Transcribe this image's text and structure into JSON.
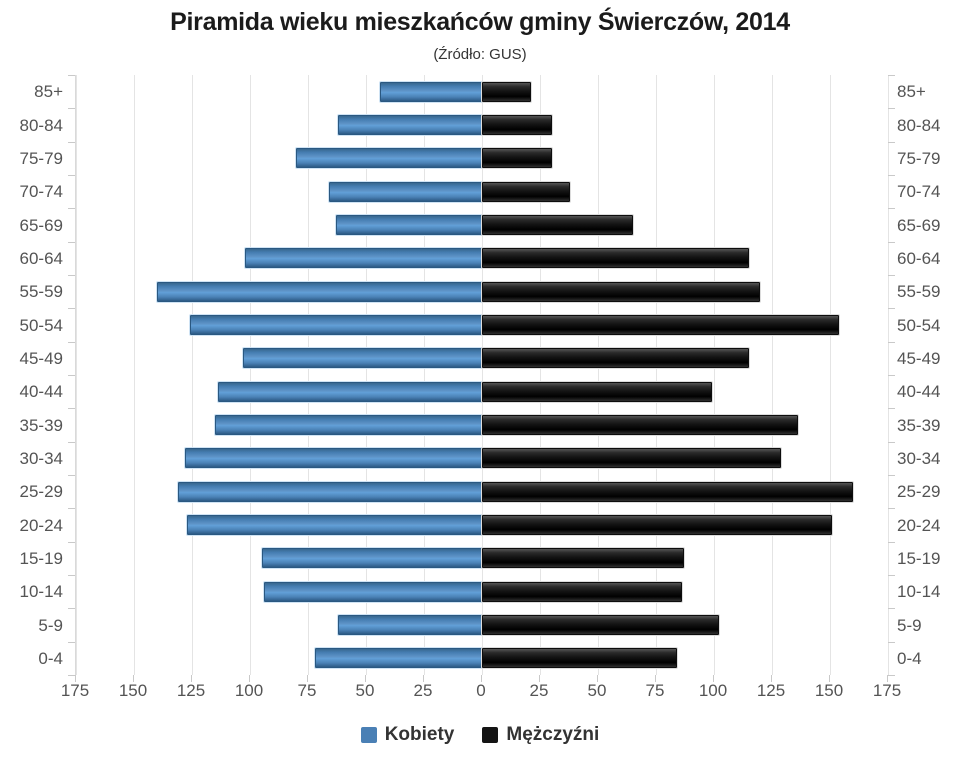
{
  "title": "Piramida wieku mieszkańców gminy Świerczów, 2014",
  "subtitle": "(Źródło: GUS)",
  "colors": {
    "female": "#4a80b5",
    "male": "#141414",
    "gridline": "#e4e4e4",
    "axis_text": "#545454"
  },
  "chart_data": {
    "type": "bar",
    "variant": "population-pyramid",
    "title": "Piramida wieku mieszkańców gminy Świerczów, 2014",
    "subtitle": "(Źródło: GUS)",
    "categories": [
      "85+",
      "80-84",
      "75-79",
      "70-74",
      "65-69",
      "60-64",
      "55-59",
      "50-54",
      "45-49",
      "40-44",
      "35-39",
      "30-34",
      "25-29",
      "20-24",
      "15-19",
      "10-14",
      "5-9",
      "0-4"
    ],
    "series": [
      {
        "name": "Kobiety",
        "side": "left",
        "color": "#4a80b5",
        "values": [
          44,
          62,
          80,
          66,
          63,
          102,
          140,
          126,
          103,
          114,
          115,
          128,
          131,
          127,
          95,
          94,
          62,
          72
        ]
      },
      {
        "name": "Mężczyźni",
        "side": "right",
        "color": "#141414",
        "values": [
          21,
          30,
          30,
          38,
          65,
          115,
          120,
          154,
          115,
          99,
          136,
          129,
          160,
          151,
          87,
          86,
          102,
          84
        ]
      }
    ],
    "x_tick_labels": [
      "175",
      "150",
      "125",
      "100",
      "75",
      "50",
      "25",
      "0",
      "25",
      "50",
      "75",
      "100",
      "125",
      "150",
      "175"
    ],
    "x_max_each_side": 175,
    "grid": true,
    "legend_position": "bottom"
  }
}
